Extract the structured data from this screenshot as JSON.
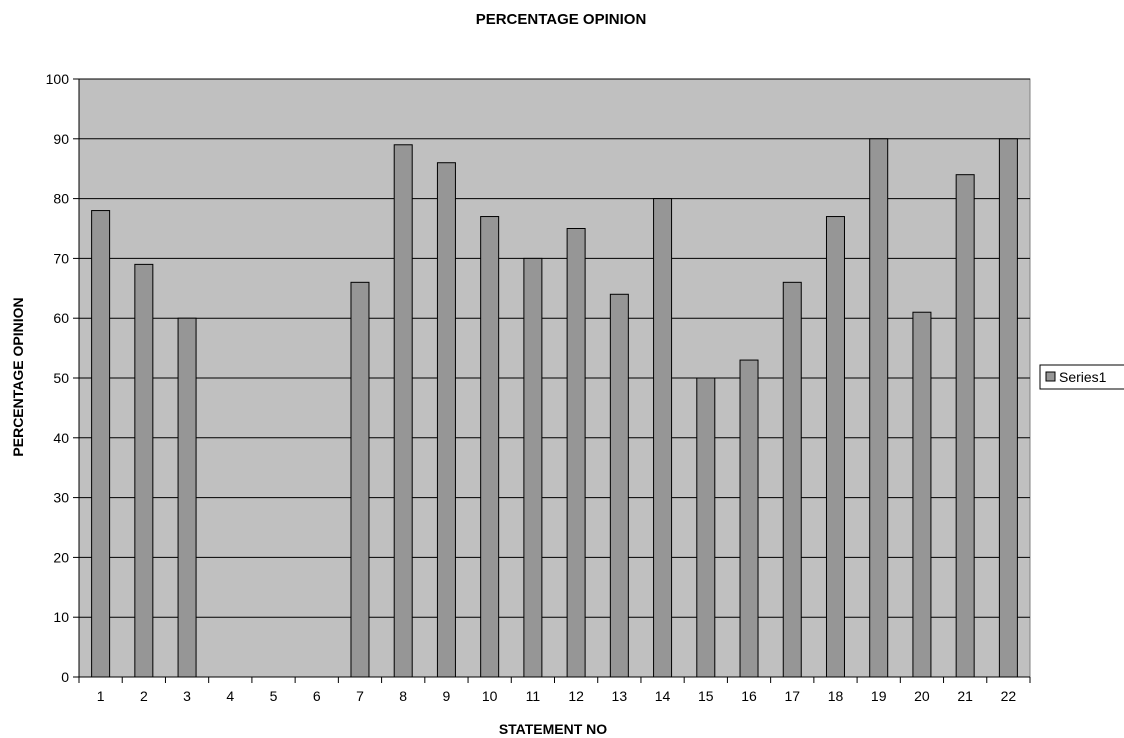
{
  "chart_data": {
    "type": "bar",
    "title": "PERCENTAGE OPINION",
    "xlabel": "STATEMENT NO",
    "ylabel": "PERCENTAGE OPINION",
    "categories": [
      "1",
      "2",
      "3",
      "4",
      "5",
      "6",
      "7",
      "8",
      "9",
      "10",
      "11",
      "12",
      "13",
      "14",
      "15",
      "16",
      "17",
      "18",
      "19",
      "20",
      "21",
      "22"
    ],
    "series": [
      {
        "name": "Series1",
        "values": [
          78,
          69,
          60,
          null,
          null,
          null,
          66,
          89,
          86,
          77,
          70,
          75,
          64,
          80,
          50,
          53,
          66,
          77,
          90,
          61,
          84,
          90
        ]
      }
    ],
    "ylim": [
      0,
      100
    ],
    "yticks": [
      0,
      10,
      20,
      30,
      40,
      50,
      60,
      70,
      80,
      90,
      100
    ],
    "grid": true,
    "legend": "right",
    "colors": {
      "plot_background": "#c0c0c0",
      "bar_fill": "#969696",
      "bar_stroke": "#000000",
      "gridline": "#000000"
    }
  }
}
